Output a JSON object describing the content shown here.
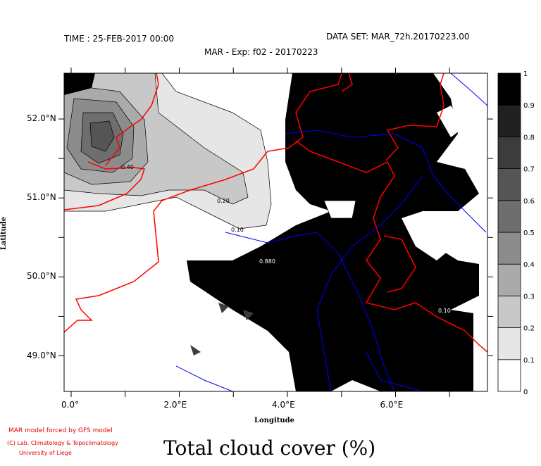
{
  "header": {
    "time": "TIME : 25-FEB-2017 00:00",
    "dataset": "DATA SET: MAR_72h.20170223.00",
    "experiment": "MAR - Exp: f02 - 20170223"
  },
  "map": {
    "xlabel": "Longitude",
    "ylabel": "Latitude",
    "lon_ticks": [
      {
        "value": 0,
        "label": "0.0°"
      },
      {
        "value": 2,
        "label": "2.0°E"
      },
      {
        "value": 4,
        "label": "4.0°E"
      },
      {
        "value": 6,
        "label": "6.0°E"
      }
    ],
    "lon_minor": [
      1,
      3,
      5,
      7
    ],
    "lat_ticks": [
      {
        "value": 52,
        "label": "52.0°N"
      },
      {
        "value": 51,
        "label": "51.0°N"
      },
      {
        "value": 50,
        "label": "50.0°N"
      },
      {
        "value": 49,
        "label": "49.0°N"
      }
    ],
    "lon_range": [
      -0.13,
      7.7
    ],
    "lat_range": [
      48.55,
      52.58
    ],
    "contour_labels": [
      "0.40",
      "0.20",
      "0.10",
      "0.880",
      "0.10"
    ],
    "border_color": "#ff0000",
    "river_color": "#0000ff"
  },
  "colorbar": {
    "levels": [
      "0",
      "0.1",
      "0.2",
      "0.3",
      "0.4",
      "0.5",
      "0.6",
      "0.7",
      "0.8",
      "0.9",
      "1"
    ],
    "colors": [
      "#ffffff",
      "#e6e6e6",
      "#c8c8c8",
      "#aaaaaa",
      "#8c8c8c",
      "#6e6e6e",
      "#555555",
      "#3c3c3c",
      "#202020",
      "#000000"
    ]
  },
  "title": "Total cloud cover (%)",
  "credits": {
    "line1": "MAR model forced by GFS model",
    "line2": "(C) Lab. Climatology & Topoclimatology",
    "line3": "University of Liege"
  }
}
